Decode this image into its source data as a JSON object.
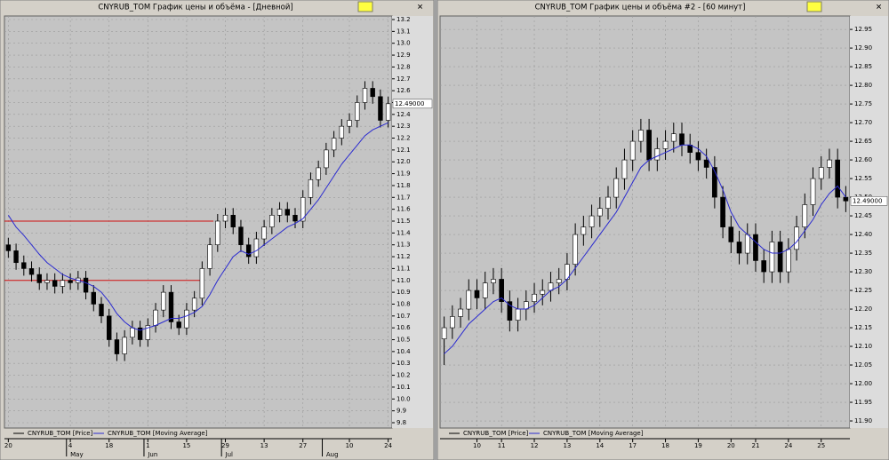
{
  "chart_data": [
    {
      "type": "candlestick",
      "title": "CNYRUB_TOM График цены и объёма - [Дневной]",
      "categories": [
        "20",
        null,
        null,
        null,
        null,
        null,
        null,
        null,
        "4",
        null,
        null,
        null,
        null,
        "18",
        null,
        null,
        null,
        null,
        "1",
        null,
        null,
        null,
        null,
        "15",
        null,
        null,
        null,
        null,
        "29",
        null,
        null,
        null,
        null,
        "13",
        null,
        null,
        null,
        null,
        "27",
        null,
        null,
        null,
        null,
        null,
        "10",
        null,
        null,
        null,
        null,
        "24"
      ],
      "months": [
        null,
        null,
        null,
        null,
        null,
        null,
        null,
        null,
        "May",
        null,
        null,
        null,
        null,
        null,
        null,
        null,
        null,
        null,
        "Jun",
        null,
        null,
        null,
        null,
        null,
        null,
        null,
        null,
        null,
        "Jul",
        null,
        null,
        null,
        null,
        null,
        null,
        null,
        null,
        null,
        null,
        null,
        null,
        "Aug",
        null,
        null,
        null,
        null,
        null,
        null,
        null,
        null
      ],
      "series": [
        {
          "name": "CNYRUB_TOM [Price]",
          "up_color": "#ffffff",
          "down_color": "#000000",
          "open": [
            11.3,
            11.25,
            11.15,
            11.1,
            11.05,
            10.98,
            11.0,
            10.95,
            11.0,
            10.98,
            11.02,
            10.9,
            10.8,
            10.7,
            10.5,
            10.38,
            10.52,
            10.6,
            10.5,
            10.62,
            10.75,
            10.9,
            10.65,
            10.6,
            10.75,
            10.85,
            11.1,
            11.3,
            11.5,
            11.55,
            11.45,
            11.3,
            11.2,
            11.35,
            11.45,
            11.55,
            11.6,
            11.55,
            11.5,
            11.7,
            11.85,
            11.95,
            12.1,
            12.2,
            12.3,
            12.35,
            12.5,
            12.62,
            12.55,
            12.35
          ],
          "high": [
            11.36,
            11.31,
            11.21,
            11.16,
            11.11,
            11.06,
            11.06,
            11.06,
            11.06,
            11.08,
            11.08,
            10.96,
            10.86,
            10.76,
            10.56,
            10.58,
            10.66,
            10.66,
            10.68,
            10.81,
            10.96,
            10.96,
            10.71,
            10.81,
            10.91,
            11.16,
            11.36,
            11.56,
            11.61,
            11.61,
            11.51,
            11.36,
            11.41,
            11.51,
            11.61,
            11.66,
            11.66,
            11.61,
            11.76,
            11.91,
            12.01,
            12.16,
            12.26,
            12.36,
            12.41,
            12.56,
            12.68,
            12.68,
            12.61,
            12.55
          ],
          "low": [
            11.19,
            11.09,
            11.04,
            10.99,
            10.92,
            10.92,
            10.89,
            10.89,
            10.92,
            10.92,
            10.84,
            10.74,
            10.64,
            10.44,
            10.32,
            10.32,
            10.46,
            10.44,
            10.44,
            10.56,
            10.69,
            10.59,
            10.54,
            10.54,
            10.69,
            10.79,
            11.04,
            11.24,
            11.44,
            11.39,
            11.24,
            11.14,
            11.14,
            11.29,
            11.39,
            11.49,
            11.49,
            11.44,
            11.44,
            11.64,
            11.79,
            11.89,
            12.04,
            12.14,
            12.24,
            12.29,
            12.44,
            12.49,
            12.29,
            12.29
          ],
          "close": [
            11.25,
            11.15,
            11.1,
            11.05,
            10.98,
            11.0,
            10.95,
            11.0,
            10.98,
            11.02,
            10.9,
            10.8,
            10.7,
            10.5,
            10.38,
            10.52,
            10.6,
            10.5,
            10.62,
            10.75,
            10.9,
            10.65,
            10.6,
            10.75,
            10.85,
            11.1,
            11.3,
            11.5,
            11.55,
            11.45,
            11.3,
            11.2,
            11.35,
            11.45,
            11.55,
            11.6,
            11.55,
            11.5,
            11.7,
            11.85,
            11.95,
            12.1,
            12.2,
            12.3,
            12.35,
            12.5,
            12.62,
            12.55,
            12.35,
            12.49
          ]
        },
        {
          "name": "CNYRUB_TOM [Moving Average]",
          "color": "#2a2ad0",
          "values": [
            11.55,
            11.45,
            11.38,
            11.3,
            11.22,
            11.15,
            11.1,
            11.05,
            11.02,
            11.0,
            10.98,
            10.95,
            10.9,
            10.82,
            10.72,
            10.65,
            10.6,
            10.58,
            10.6,
            10.62,
            10.65,
            10.68,
            10.68,
            10.7,
            10.73,
            10.78,
            10.88,
            11.0,
            11.1,
            11.2,
            11.25,
            11.22,
            11.25,
            11.3,
            11.35,
            11.4,
            11.45,
            11.48,
            11.52,
            11.6,
            11.68,
            11.78,
            11.88,
            11.98,
            12.06,
            12.14,
            12.22,
            12.27,
            12.3,
            12.33
          ]
        }
      ],
      "hlines": [
        11.5,
        11.0
      ],
      "hline_color": "#d01010",
      "last_price": {
        "value": 12.49,
        "label": "12.49000"
      },
      "ylim": [
        9.755,
        13.23
      ],
      "yticks": [
        9.8,
        9.9,
        {
          "value": 10.0,
          "label": "10.0"
        },
        10.1,
        10.2,
        10.3,
        10.4,
        10.5,
        10.6,
        10.7,
        10.8,
        10.9,
        {
          "value": 11.0,
          "label": "11.0"
        },
        11.1,
        11.2,
        11.3,
        11.4,
        11.5,
        11.6,
        11.7,
        11.8,
        11.9,
        {
          "value": 12.0,
          "label": "12.0"
        },
        12.1,
        12.2,
        12.3,
        12.4,
        12.5,
        12.6,
        12.7,
        12.8,
        12.9,
        {
          "value": 13.0,
          "label": "13.0"
        },
        13.1,
        13.2
      ],
      "grid": true
    },
    {
      "type": "candlestick",
      "title": "CNYRUB_TOM График цены и объёма #2 - [60 минут]",
      "categories": [
        null,
        null,
        null,
        null,
        "10",
        null,
        null,
        "11",
        null,
        null,
        null,
        "12",
        null,
        null,
        null,
        "13",
        null,
        null,
        null,
        "14",
        null,
        null,
        null,
        "17",
        null,
        null,
        null,
        "18",
        null,
        null,
        null,
        "19",
        null,
        null,
        null,
        "20",
        null,
        null,
        "21",
        null,
        null,
        null,
        "24",
        null,
        null,
        null,
        "25",
        null,
        null,
        null
      ],
      "series": [
        {
          "name": "CNYRUB_TOM [Price]",
          "up_color": "#ffffff",
          "down_color": "#000000",
          "open": [
            12.12,
            12.15,
            12.18,
            12.2,
            12.25,
            12.23,
            12.27,
            12.28,
            12.22,
            12.17,
            12.2,
            12.22,
            12.24,
            12.25,
            12.27,
            12.28,
            12.32,
            12.4,
            12.42,
            12.45,
            12.47,
            12.5,
            12.55,
            12.6,
            12.65,
            12.68,
            12.6,
            12.63,
            12.65,
            12.67,
            12.64,
            12.62,
            12.6,
            12.58,
            12.5,
            12.42,
            12.38,
            12.35,
            12.4,
            12.33,
            12.3,
            12.38,
            12.3,
            12.36,
            12.42,
            12.48,
            12.55,
            12.58,
            12.6,
            12.5
          ],
          "high": [
            12.18,
            12.21,
            12.23,
            12.28,
            12.28,
            12.3,
            12.31,
            12.31,
            12.25,
            12.23,
            12.25,
            12.27,
            12.28,
            12.3,
            12.31,
            12.35,
            12.43,
            12.45,
            12.48,
            12.5,
            12.53,
            12.58,
            12.63,
            12.68,
            12.71,
            12.71,
            12.66,
            12.68,
            12.7,
            12.7,
            12.67,
            12.65,
            12.63,
            12.61,
            12.53,
            12.45,
            12.41,
            12.43,
            12.43,
            12.36,
            12.41,
            12.41,
            12.39,
            12.45,
            12.51,
            12.58,
            12.61,
            12.63,
            12.63,
            12.53
          ],
          "low": [
            12.05,
            12.12,
            12.15,
            12.17,
            12.2,
            12.2,
            12.24,
            12.19,
            12.14,
            12.14,
            12.17,
            12.19,
            12.21,
            12.22,
            12.24,
            12.25,
            12.29,
            12.37,
            12.39,
            12.42,
            12.44,
            12.47,
            12.52,
            12.57,
            12.62,
            12.57,
            12.57,
            12.6,
            12.62,
            12.61,
            12.59,
            12.57,
            12.55,
            12.47,
            12.39,
            12.35,
            12.32,
            12.32,
            12.3,
            12.27,
            12.27,
            12.27,
            12.27,
            12.33,
            12.39,
            12.45,
            12.52,
            12.55,
            12.47,
            12.46
          ],
          "close": [
            12.15,
            12.18,
            12.2,
            12.25,
            12.23,
            12.27,
            12.28,
            12.22,
            12.17,
            12.2,
            12.22,
            12.24,
            12.25,
            12.27,
            12.28,
            12.32,
            12.4,
            12.42,
            12.45,
            12.47,
            12.5,
            12.55,
            12.6,
            12.65,
            12.68,
            12.6,
            12.63,
            12.65,
            12.67,
            12.64,
            12.62,
            12.6,
            12.58,
            12.5,
            12.42,
            12.38,
            12.35,
            12.4,
            12.33,
            12.3,
            12.38,
            12.3,
            12.36,
            12.42,
            12.48,
            12.55,
            12.58,
            12.6,
            12.5,
            12.49
          ]
        },
        {
          "name": "CNYRUB_TOM [Moving Average]",
          "color": "#2a2ad0",
          "values": [
            12.08,
            12.1,
            12.13,
            12.16,
            12.18,
            12.2,
            12.22,
            12.23,
            12.21,
            12.2,
            12.2,
            12.21,
            12.23,
            12.25,
            12.26,
            12.28,
            12.31,
            12.34,
            12.37,
            12.4,
            12.43,
            12.46,
            12.5,
            12.54,
            12.58,
            12.6,
            12.61,
            12.62,
            12.63,
            12.64,
            12.64,
            12.63,
            12.61,
            12.57,
            12.52,
            12.46,
            12.42,
            12.4,
            12.38,
            12.36,
            12.35,
            12.35,
            12.36,
            12.38,
            12.41,
            12.44,
            12.48,
            12.51,
            12.53,
            12.5
          ]
        }
      ],
      "last_price": {
        "value": 12.49,
        "label": "12.49000"
      },
      "ylim": [
        11.881,
        12.986
      ],
      "yticks": [
        {
          "value": 11.9,
          "label": "11.90"
        },
        11.95,
        {
          "value": 12.0,
          "label": "12.00"
        },
        12.05,
        {
          "value": 12.1,
          "label": "12.10"
        },
        12.15,
        {
          "value": 12.2,
          "label": "12.20"
        },
        12.25,
        {
          "value": 12.3,
          "label": "12.30"
        },
        12.35,
        {
          "value": 12.4,
          "label": "12.40"
        },
        12.45,
        {
          "value": 12.5,
          "label": "12.50"
        },
        12.55,
        {
          "value": 12.6,
          "label": "12.60"
        },
        12.65,
        {
          "value": 12.7,
          "label": "12.70"
        },
        12.75,
        {
          "value": 12.8,
          "label": "12.80"
        },
        12.85,
        {
          "value": 12.9,
          "label": "12.90"
        },
        12.95
      ],
      "grid": true
    }
  ]
}
